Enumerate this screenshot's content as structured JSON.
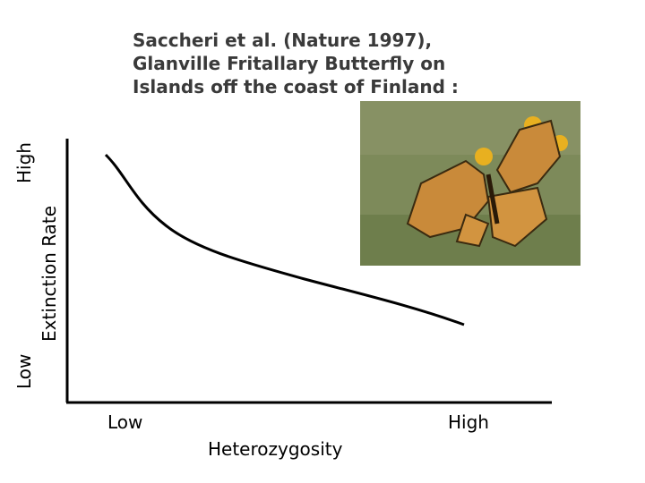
{
  "header": {
    "title_lines": [
      "Saccheri et al. (Nature 1997),",
      "Glanville Fritallary Butterfly on",
      "Islands off the coast of Finland :"
    ]
  },
  "y_axis": {
    "label": "Extinction Rate",
    "low": "Low",
    "high": "High"
  },
  "x_axis": {
    "label": "Heterozygosity",
    "low": "Low",
    "high": "High"
  }
}
